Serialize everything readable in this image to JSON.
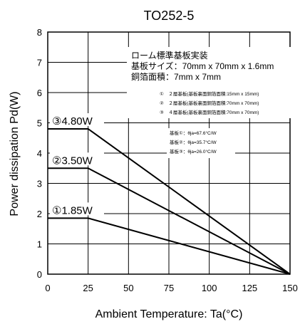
{
  "chart_data": {
    "type": "line",
    "title": "TO252-5",
    "xlabel": "Ambient Temperature: Ta(°C)",
    "ylabel": "Power dissipation Pd(W)",
    "xlim": [
      0,
      150
    ],
    "ylim": [
      0,
      8
    ],
    "xticks": [
      "0",
      "25",
      "50",
      "75",
      "100",
      "125",
      "150"
    ],
    "yticks": [
      "0",
      "1",
      "2",
      "3",
      "4",
      "5",
      "6",
      "7",
      "8"
    ],
    "grid": true,
    "series": [
      {
        "name": "③4.80W",
        "x": [
          0,
          25,
          150
        ],
        "y": [
          4.8,
          4.8,
          0
        ]
      },
      {
        "name": "②3.50W",
        "x": [
          0,
          25,
          150
        ],
        "y": [
          3.5,
          3.5,
          0
        ]
      },
      {
        "name": "①1.85W",
        "x": [
          0,
          25,
          150
        ],
        "y": [
          1.85,
          1.85,
          0
        ]
      }
    ],
    "annotations": {
      "board_line1": "ローム標準基板実装",
      "board_line2": "基板サイズ：70mm x 70mm x 1.6mm",
      "board_line3": "銅箔面積：7mm x 7mm",
      "cond1": "①　２層基板(基板裏面銅箔面積:15mm x 15mm)",
      "cond2": "②　２層基板(基板裏面銅箔面積:70mm x 70mm)",
      "cond3": "③　４層基板(基板裏面銅箔面積:70mm x 70mm)",
      "theta1": "基板①：θja=67.6°C/W",
      "theta2": "基板②：θja=35.7°C/W",
      "theta3": "基板③：θja=26.0°C/W"
    }
  }
}
